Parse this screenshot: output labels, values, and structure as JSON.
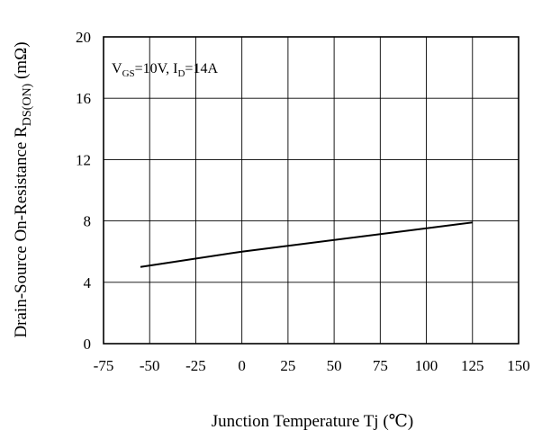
{
  "chart_data": {
    "type": "line",
    "xlabel": "Junction Temperature  Tj (℃)",
    "ylabel": {
      "main": "Drain-Source On-Resistance  R",
      "sub": "DS(ON)",
      "unit": " (mΩ)"
    },
    "xlim": [
      -75,
      150
    ],
    "ylim": [
      0,
      20
    ],
    "x_ticks": [
      -75,
      -50,
      -25,
      0,
      25,
      50,
      75,
      100,
      125,
      150
    ],
    "y_ticks": [
      0,
      4,
      8,
      12,
      16,
      20
    ],
    "grid": true,
    "annotation": {
      "v": "V",
      "v_sub": "GS",
      "v_val": "=10V, I",
      "i_sub": "D",
      "i_val": "=14A"
    },
    "series": [
      {
        "color": "#000000",
        "x": [
          -55,
          0,
          125
        ],
        "y": [
          5.0,
          6.0,
          7.9
        ]
      }
    ]
  }
}
